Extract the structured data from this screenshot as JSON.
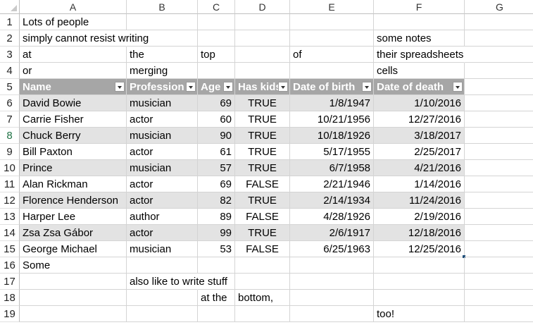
{
  "columns": [
    "A",
    "B",
    "C",
    "D",
    "E",
    "F",
    "G"
  ],
  "row_numbers": [
    "1",
    "2",
    "3",
    "4",
    "5",
    "6",
    "7",
    "8",
    "9",
    "10",
    "11",
    "12",
    "13",
    "14",
    "15",
    "16",
    "17",
    "18",
    "19"
  ],
  "selected_row": "8",
  "notes": {
    "r1_a": "Lots of people",
    "r2_a": "simply cannot resist writing",
    "r2_f": "some notes",
    "r3_a": "at",
    "r3_b": "the",
    "r3_c": "top",
    "r3_e": "of",
    "r3_f": "their spreadsheets",
    "r4_a": "or",
    "r4_b": "merging",
    "r4_f": "cells",
    "r16_a": "Some",
    "r17_b": "also like to write stuff",
    "r18_c": "at the",
    "r18_d": "bottom,",
    "r19_f": "too!"
  },
  "table": {
    "headers": [
      "Name",
      "Profession",
      "Age",
      "Has kids",
      "Date of birth",
      "Date of death"
    ],
    "rows": [
      [
        "David Bowie",
        "musician",
        "69",
        "TRUE",
        "1/8/1947",
        "1/10/2016"
      ],
      [
        "Carrie Fisher",
        "actor",
        "60",
        "TRUE",
        "10/21/1956",
        "12/27/2016"
      ],
      [
        "Chuck Berry",
        "musician",
        "90",
        "TRUE",
        "10/18/1926",
        "3/18/2017"
      ],
      [
        "Bill Paxton",
        "actor",
        "61",
        "TRUE",
        "5/17/1955",
        "2/25/2017"
      ],
      [
        "Prince",
        "musician",
        "57",
        "TRUE",
        "6/7/1958",
        "4/21/2016"
      ],
      [
        "Alan Rickman",
        "actor",
        "69",
        "FALSE",
        "2/21/1946",
        "1/14/2016"
      ],
      [
        "Florence Henderson",
        "actor",
        "82",
        "TRUE",
        "2/14/1934",
        "11/24/2016"
      ],
      [
        "Harper Lee",
        "author",
        "89",
        "FALSE",
        "4/28/1926",
        "2/19/2016"
      ],
      [
        "Zsa Zsa Gábor",
        "actor",
        "99",
        "TRUE",
        "2/6/1917",
        "12/18/2016"
      ],
      [
        "George Michael",
        "musician",
        "53",
        "FALSE",
        "6/25/1963",
        "12/25/2016"
      ]
    ]
  },
  "colors": {
    "table_header_bg": "#a6a6a6",
    "band_bg": "#e3e3e3",
    "selected_row_header": "#217346"
  }
}
